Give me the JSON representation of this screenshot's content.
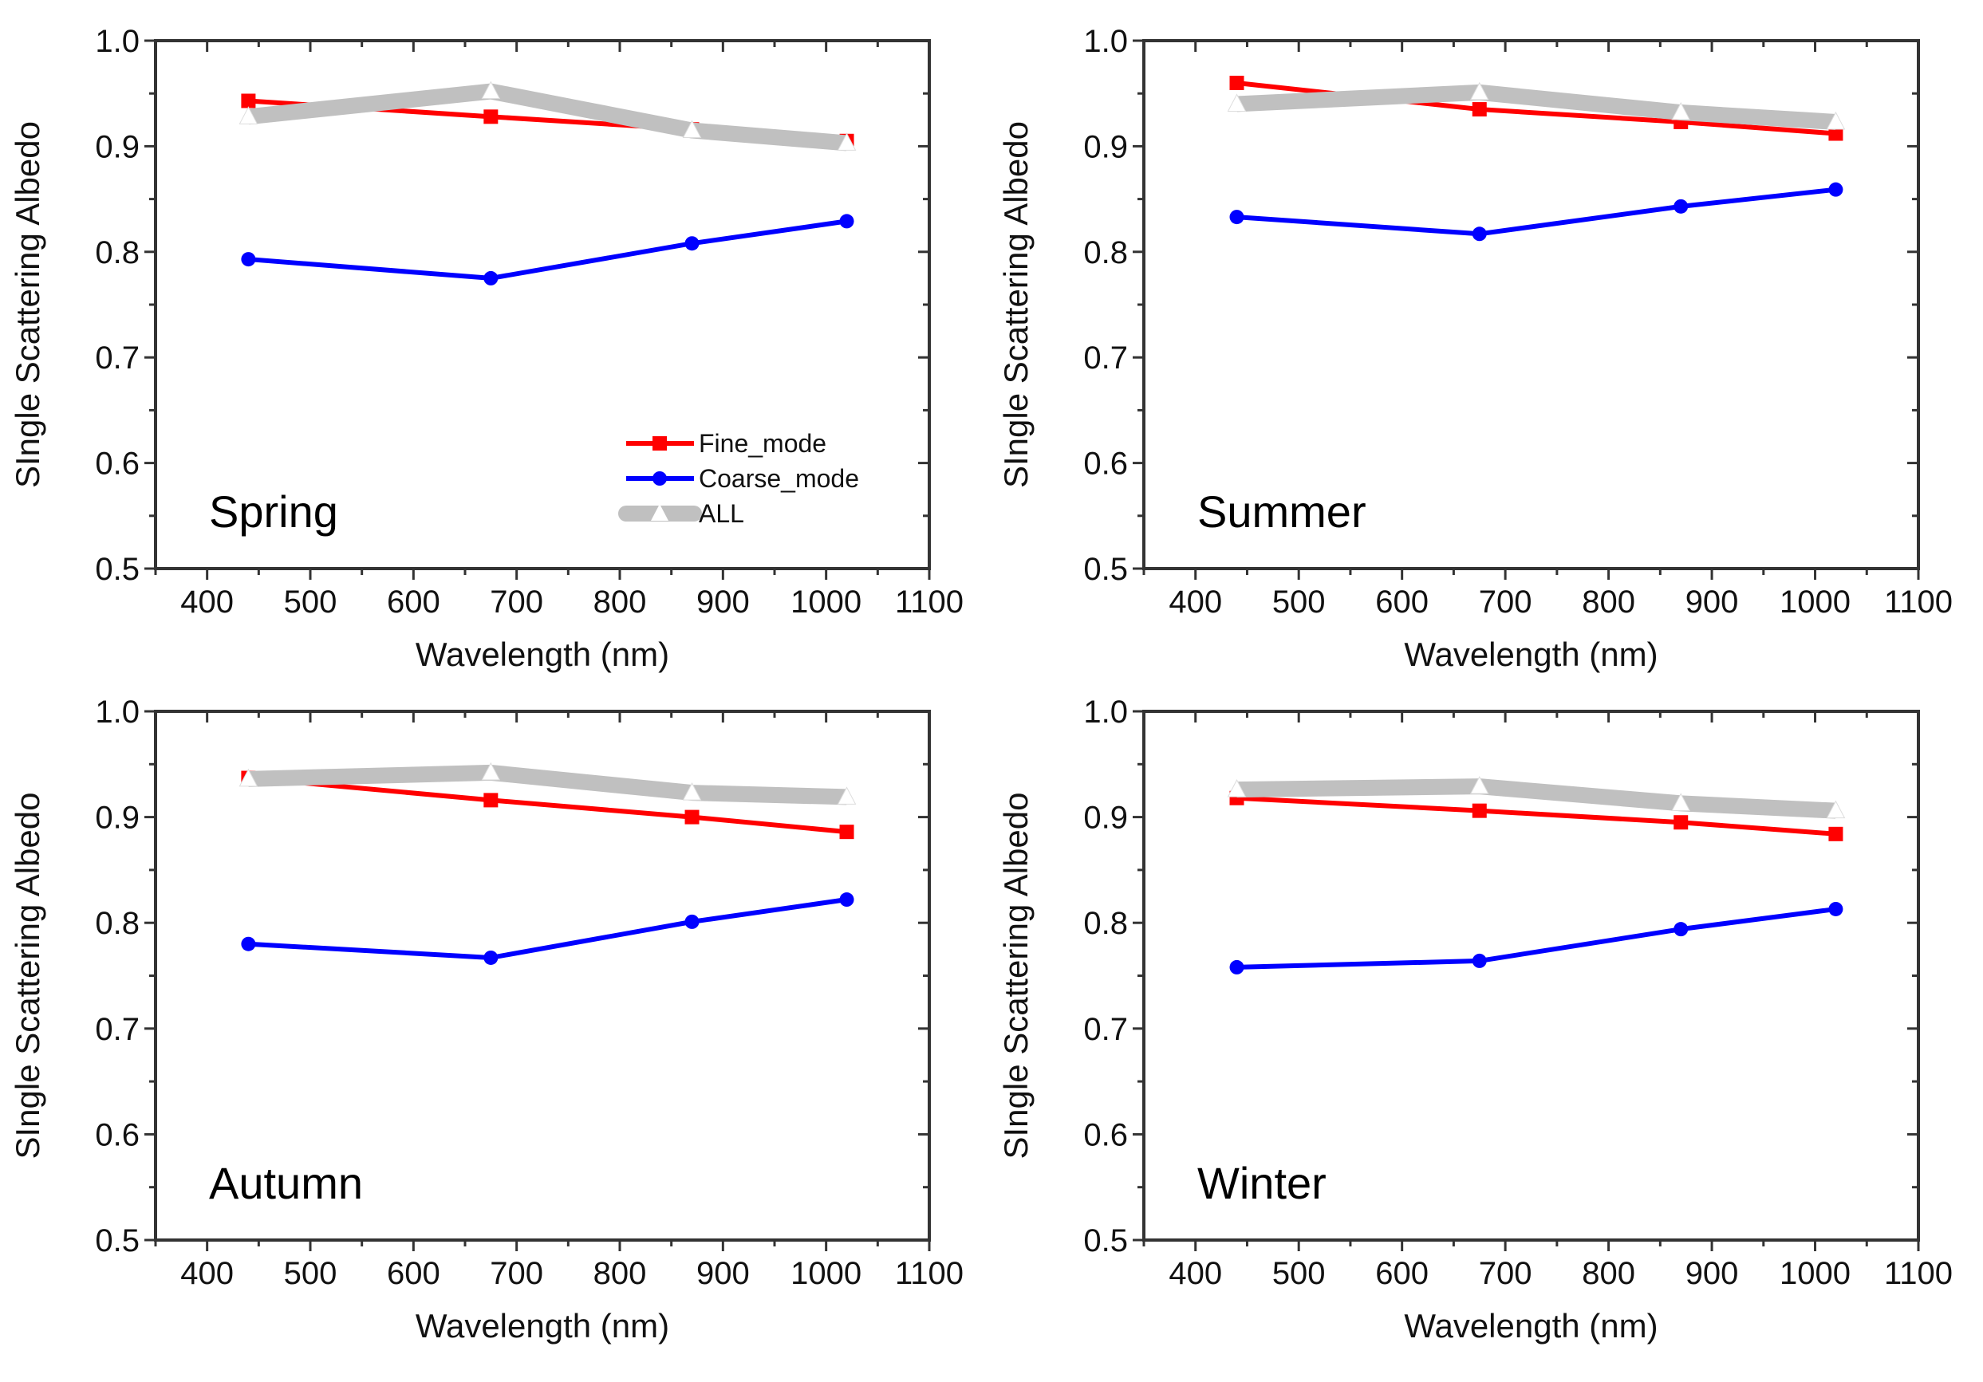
{
  "chart_data": [
    {
      "type": "line",
      "title": "Spring",
      "xlabel": "Wavelength (nm)",
      "ylabel": "SIngle Scattering Albedo",
      "xlim": [
        350,
        1100
      ],
      "ylim": [
        0.5,
        1.0
      ],
      "xticks": [
        400,
        500,
        600,
        700,
        800,
        900,
        1000,
        1100
      ],
      "yticks": [
        "0.5",
        "0.6",
        "0.7",
        "0.8",
        "0.9",
        "1.0"
      ],
      "x": [
        440,
        675,
        870,
        1020
      ],
      "legend": "bottom-right",
      "series": [
        {
          "name": "Fine_mode",
          "values": [
            0.943,
            0.928,
            0.916,
            0.905
          ]
        },
        {
          "name": "Coarse_mode",
          "values": [
            0.793,
            0.775,
            0.808,
            0.829
          ]
        },
        {
          "name": "ALL",
          "values": [
            0.928,
            0.952,
            0.915,
            0.903
          ]
        }
      ]
    },
    {
      "type": "line",
      "title": "Summer",
      "xlabel": "Wavelength (nm)",
      "ylabel": "SIngle Scattering Albedo",
      "xlim": [
        350,
        1100
      ],
      "ylim": [
        0.5,
        1.0
      ],
      "xticks": [
        400,
        500,
        600,
        700,
        800,
        900,
        1000,
        1100
      ],
      "yticks": [
        "0.5",
        "0.6",
        "0.7",
        "0.8",
        "0.9",
        "1.0"
      ],
      "x": [
        440,
        675,
        870,
        1020
      ],
      "series": [
        {
          "name": "Fine_mode",
          "values": [
            0.96,
            0.935,
            0.923,
            0.912
          ]
        },
        {
          "name": "Coarse_mode",
          "values": [
            0.833,
            0.817,
            0.843,
            0.859
          ]
        },
        {
          "name": "ALL",
          "values": [
            0.94,
            0.951,
            0.932,
            0.923
          ]
        }
      ]
    },
    {
      "type": "line",
      "title": "Autumn",
      "xlabel": "Wavelength (nm)",
      "ylabel": "SIngle Scattering Albedo",
      "xlim": [
        350,
        1100
      ],
      "ylim": [
        0.5,
        1.0
      ],
      "xticks": [
        400,
        500,
        600,
        700,
        800,
        900,
        1000,
        1100
      ],
      "yticks": [
        "0.5",
        "0.6",
        "0.7",
        "0.8",
        "0.9",
        "1.0"
      ],
      "x": [
        440,
        675,
        870,
        1020
      ],
      "series": [
        {
          "name": "Fine_mode",
          "values": [
            0.937,
            0.916,
            0.9,
            0.886
          ]
        },
        {
          "name": "Coarse_mode",
          "values": [
            0.78,
            0.767,
            0.801,
            0.822
          ]
        },
        {
          "name": "ALL",
          "values": [
            0.936,
            0.942,
            0.923,
            0.919
          ]
        }
      ]
    },
    {
      "type": "line",
      "title": "Winter",
      "xlabel": "Wavelength (nm)",
      "ylabel": "SIngle Scattering Albedo",
      "xlim": [
        350,
        1100
      ],
      "ylim": [
        0.5,
        1.0
      ],
      "xticks": [
        400,
        500,
        600,
        700,
        800,
        900,
        1000,
        1100
      ],
      "yticks": [
        "0.5",
        "0.6",
        "0.7",
        "0.8",
        "0.9",
        "1.0"
      ],
      "x": [
        440,
        675,
        870,
        1020
      ],
      "series": [
        {
          "name": "Fine_mode",
          "values": [
            0.918,
            0.906,
            0.895,
            0.884
          ]
        },
        {
          "name": "Coarse_mode",
          "values": [
            0.758,
            0.764,
            0.794,
            0.813
          ]
        },
        {
          "name": "ALL",
          "values": [
            0.926,
            0.929,
            0.913,
            0.906
          ]
        }
      ]
    }
  ],
  "colors": {
    "Fine_mode": "#ff0000",
    "Coarse_mode": "#0000ff",
    "ALL": "#c0c0c0"
  }
}
